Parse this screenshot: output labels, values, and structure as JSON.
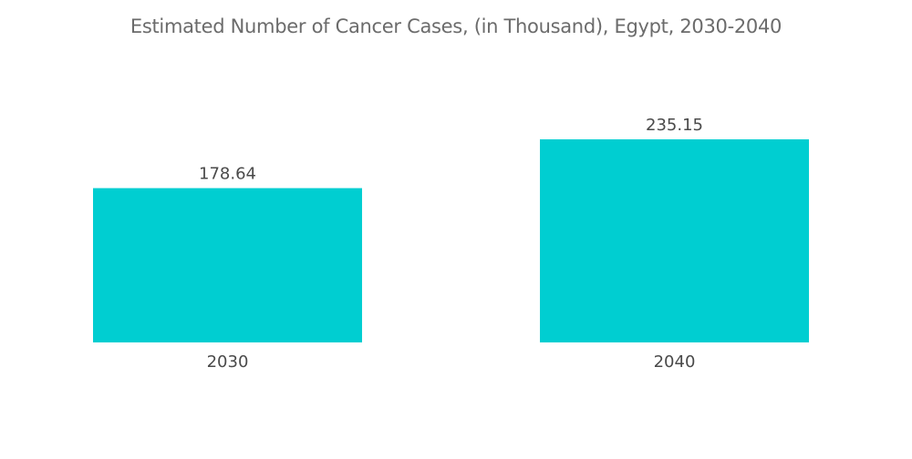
{
  "chart_data": {
    "type": "bar",
    "title": "Estimated Number of Cancer Cases, (in Thousand), Egypt, 2030-2040",
    "categories": [
      "2030",
      "2040"
    ],
    "values": [
      178.64,
      235.15
    ],
    "value_labels": [
      "178.64",
      "235.15"
    ],
    "xlabel": "",
    "ylabel": "",
    "ylim": [
      0,
      235.15
    ],
    "grid": false,
    "legend": "none",
    "bar_color": "#00CED1"
  }
}
